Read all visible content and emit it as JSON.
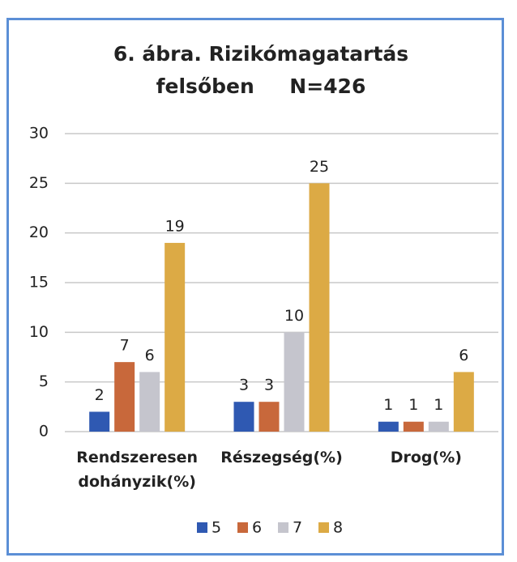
{
  "chart_data": {
    "type": "bar",
    "title": [
      "6. ábra.  Rizikómagatartás",
      "felsőben     N=426"
    ],
    "categories": [
      "Rendszeresen dohányzik(%)",
      "Részegség(%)",
      "Drog(%)"
    ],
    "series": [
      {
        "name": "5",
        "color": "#2f59b2",
        "values": [
          2,
          3,
          1
        ]
      },
      {
        "name": "6",
        "color": "#c8683b",
        "values": [
          7,
          3,
          1
        ]
      },
      {
        "name": "7",
        "color": "#c5c5cd",
        "values": [
          6,
          10,
          1
        ]
      },
      {
        "name": "8",
        "color": "#dcaa45",
        "values": [
          19,
          25,
          6
        ]
      }
    ],
    "ylim": [
      0,
      30
    ],
    "yticks": [
      0,
      5,
      10,
      15,
      20,
      25,
      30
    ],
    "grid": true,
    "legend": "bottom"
  }
}
